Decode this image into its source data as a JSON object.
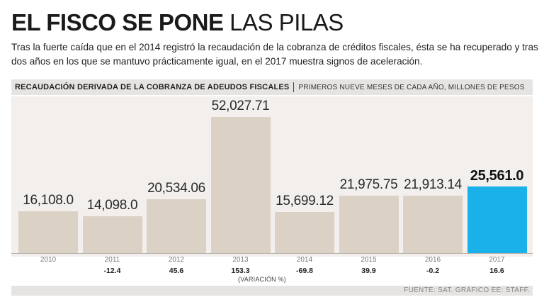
{
  "headline": {
    "bold": "EL FISCO SE PONE",
    "light": "LAS PILAS"
  },
  "subtitle": "Tras la fuerte caída que en el 2014 registró la recaudación de la cobranza de créditos fiscales, ésta se ha recuperado y tras dos años en los que se mantuvo prácticamente igual, en el 2017 muestra signos de aceleración.",
  "header": {
    "series_label": "RECAUDACIÓN DERIVADA DE LA COBRANZA DE ADEUDOS FISCALES",
    "unit_label": "PRIMEROS NUEVE MESES DE CADA AÑO, MILLONES DE PESOS"
  },
  "colors": {
    "bar": "#dcd1c5",
    "highlight": "#1ab0ea",
    "panel": "#f2efec",
    "header_band": "#e6e4e2"
  },
  "chart_data": {
    "type": "bar",
    "categories": [
      "2010",
      "2011",
      "2012",
      "2013",
      "2014",
      "2015",
      "2016",
      "2017"
    ],
    "values": [
      16108.0,
      14098.0,
      20534.06,
      52027.71,
      15699.12,
      21975.75,
      21913.14,
      25561.0
    ],
    "value_labels": [
      "16,108.0",
      "14,098.0",
      "20,534.06",
      "52,027.71",
      "15,699.12",
      "21,975.75",
      "21,913.14",
      "25,561.0"
    ],
    "variation": [
      "",
      "-12.4",
      "45.6",
      "153.3",
      "-69.8",
      "39.9",
      "-0.2",
      "16.6"
    ],
    "variation_caption": "(VARIACIÓN %)",
    "highlight_index": 7,
    "ylim": [
      0,
      52027.71
    ],
    "grid": false
  },
  "source": "FUENTE: SAT. GRÁFICO EE: STAFF."
}
